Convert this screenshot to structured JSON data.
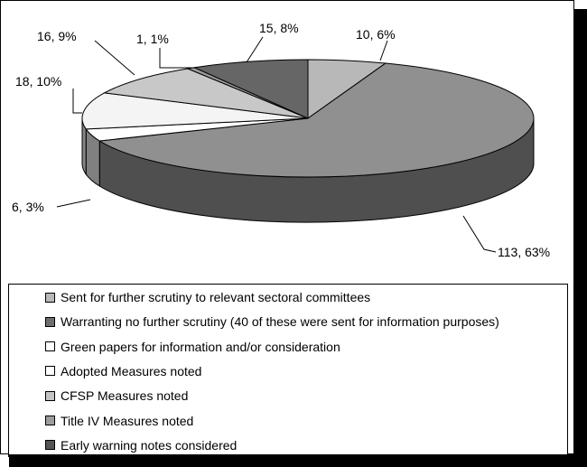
{
  "chart_data": {
    "type": "pie",
    "title": "",
    "legend_position": "bottom",
    "colors": {
      "c0": "#b8b8b8",
      "c1": "#6e6e6e",
      "c2": "#ffffff",
      "c3": "#ffffff",
      "c4": "#c4c4c4",
      "c5": "#9c9c9c",
      "c6": "#555555"
    },
    "slices": [
      {
        "label": "Sent for further scrutiny to relevant sectoral committees",
        "value": 10,
        "percent": "6%",
        "data_label": "10, 6%",
        "color": "#b8b8b8"
      },
      {
        "label": "Warranting no further scrutiny (40 of these were sent for information purposes)",
        "value": 113,
        "percent": "63%",
        "data_label": "113, 63%",
        "color": "#909090"
      },
      {
        "label": "Green papers for information and/or consideration",
        "value": 6,
        "percent": "3%",
        "data_label": "6, 3%",
        "color": "#ffffff"
      },
      {
        "label": "Adopted Measures noted",
        "value": 18,
        "percent": "10%",
        "data_label": "18, 10%",
        "color": "#f4f4f4"
      },
      {
        "label": "CFSP Measures noted",
        "value": 16,
        "percent": "9%",
        "data_label": "16, 9%",
        "color": "#c8c8c8"
      },
      {
        "label": "Title IV Measures noted",
        "value": 1,
        "percent": "1%",
        "data_label": "1, 1%",
        "color": "#9c9c9c"
      },
      {
        "label": "Early warning notes considered",
        "value": 15,
        "percent": "8%",
        "data_label": "15, 8%",
        "color": "#666666"
      }
    ],
    "legend_swatch_colors": [
      "#b8b8b8",
      "#6e6e6e",
      "#ffffff",
      "#ffffff",
      "#c4c4c4",
      "#9c9c9c",
      "#555555"
    ]
  }
}
